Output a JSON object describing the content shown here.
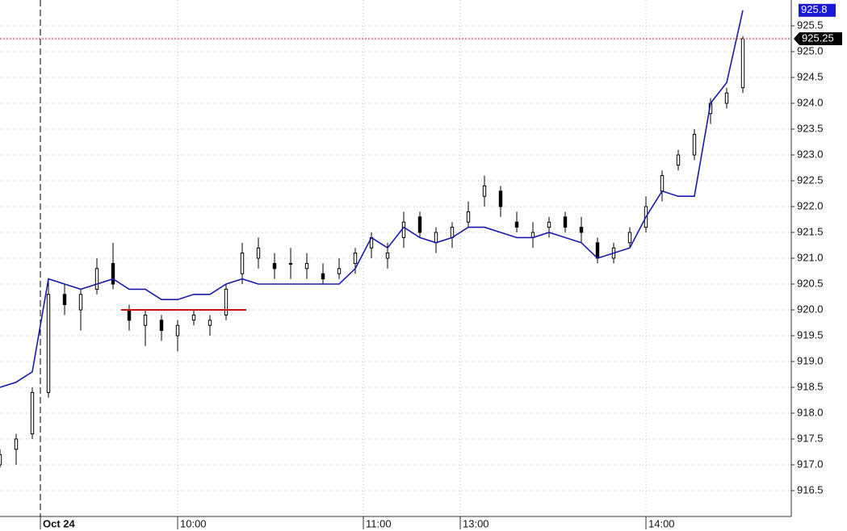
{
  "chart_data": {
    "type": "candlestick",
    "x": [
      0,
      4,
      8,
      12,
      16,
      20,
      24,
      28,
      32,
      36,
      40,
      44,
      48,
      52,
      56,
      60,
      64,
      68,
      72,
      76,
      80,
      84,
      88,
      92,
      96,
      100,
      104,
      108,
      112,
      116,
      120,
      124,
      128,
      132,
      136,
      140,
      144,
      148,
      152,
      156,
      160,
      164,
      168,
      172,
      176,
      180,
      184
    ],
    "open": [
      917.0,
      917.3,
      917.6,
      918.4,
      920.3,
      920.0,
      920.4,
      920.9,
      920.0,
      919.7,
      919.8,
      919.5,
      919.8,
      919.7,
      919.9,
      920.7,
      921.0,
      920.9,
      920.9,
      920.8,
      920.7,
      920.7,
      920.9,
      921.2,
      921.0,
      921.4,
      921.8,
      921.3,
      921.4,
      921.7,
      922.2,
      922.3,
      921.7,
      921.4,
      921.6,
      921.8,
      921.6,
      921.3,
      921.0,
      921.3,
      921.6,
      922.3,
      922.8,
      923.0,
      923.8,
      924.0,
      924.3
    ],
    "high": [
      917.3,
      917.6,
      918.5,
      920.6,
      920.5,
      920.4,
      921.0,
      921.3,
      920.1,
      920.0,
      919.9,
      919.8,
      920.0,
      919.9,
      920.5,
      921.3,
      921.4,
      921.1,
      921.2,
      921.1,
      920.9,
      921.0,
      921.2,
      921.5,
      921.3,
      921.9,
      921.9,
      921.6,
      921.7,
      922.1,
      922.6,
      922.4,
      921.9,
      921.7,
      921.8,
      921.9,
      921.8,
      921.4,
      921.3,
      921.6,
      922.2,
      922.7,
      923.1,
      923.5,
      924.1,
      924.3,
      925.3
    ],
    "low": [
      916.95,
      917.0,
      917.5,
      918.3,
      919.9,
      919.6,
      920.3,
      920.4,
      919.6,
      919.3,
      919.4,
      919.2,
      919.7,
      919.5,
      919.8,
      920.5,
      920.8,
      920.6,
      920.6,
      920.6,
      920.5,
      920.6,
      920.7,
      921.0,
      920.8,
      921.2,
      921.4,
      921.1,
      921.2,
      921.6,
      922.0,
      921.8,
      921.5,
      921.2,
      921.4,
      921.5,
      921.3,
      920.9,
      920.9,
      921.2,
      921.5,
      922.1,
      922.7,
      922.9,
      923.6,
      923.9,
      924.2
    ],
    "close": [
      917.2,
      917.5,
      918.4,
      920.3,
      920.1,
      920.3,
      920.8,
      920.5,
      919.8,
      919.9,
      919.6,
      919.7,
      919.9,
      919.8,
      920.4,
      921.1,
      921.2,
      920.8,
      920.9,
      920.9,
      920.6,
      920.8,
      921.1,
      921.4,
      921.1,
      921.7,
      921.5,
      921.5,
      921.6,
      921.9,
      922.4,
      922.0,
      921.6,
      921.5,
      921.7,
      921.6,
      921.5,
      921.0,
      921.2,
      921.5,
      922.0,
      922.6,
      923.0,
      923.4,
      924.0,
      924.2,
      925.25
    ],
    "line": {
      "color": "#1a1aa8",
      "values": [
        918.5,
        918.6,
        918.8,
        920.6,
        920.5,
        920.4,
        920.5,
        920.6,
        920.4,
        920.4,
        920.2,
        920.2,
        920.3,
        920.3,
        920.5,
        920.6,
        920.5,
        920.5,
        920.5,
        920.5,
        920.5,
        920.5,
        920.8,
        921.4,
        921.2,
        921.6,
        921.4,
        921.3,
        921.4,
        921.6,
        921.6,
        921.5,
        921.4,
        921.4,
        921.5,
        921.4,
        921.3,
        921.0,
        921.1,
        921.2,
        921.8,
        922.3,
        922.2,
        922.2,
        924.0,
        924.4,
        925.8
      ]
    },
    "ref_line": {
      "value": 920,
      "x": [
        30,
        61
      ],
      "color": "#cc1111"
    },
    "price_line": 925.25,
    "last_value": 925.8,
    "xlim": [
      0,
      196
    ],
    "ylim": [
      916,
      926
    ],
    "xticks": [
      {
        "value": 10,
        "label": "Oct 24"
      },
      {
        "value": 44,
        "label": "10:00"
      },
      {
        "value": 90,
        "label": "11:00"
      },
      {
        "value": 114,
        "label": "13:00"
      },
      {
        "value": 160,
        "label": "14:00"
      }
    ],
    "yticks": [
      916.5,
      {
        "value": 917,
        "label": "917.0"
      },
      917.5,
      {
        "value": 918,
        "label": "918.0"
      },
      918.5,
      {
        "value": 919,
        "label": "919.0"
      },
      919.5,
      {
        "value": 920,
        "label": "920.0"
      },
      920.5,
      {
        "value": 921,
        "label": "921.0"
      },
      921.5,
      {
        "value": 922,
        "label": "922.0"
      },
      922.5,
      {
        "value": 923,
        "label": "923.0"
      },
      923.5,
      {
        "value": 924,
        "label": "924.0"
      },
      924.5,
      {
        "value": 925,
        "label": "925.0"
      },
      925.5
    ],
    "grid": true
  }
}
